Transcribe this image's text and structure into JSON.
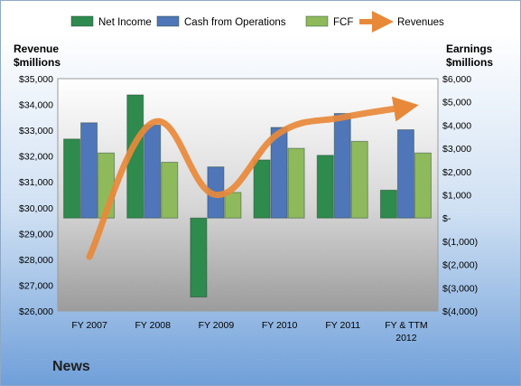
{
  "footer": {
    "title": "News"
  },
  "chart_data": {
    "type": "bar",
    "left_axis": {
      "title_line1": "Revenue",
      "title_line2": "$millions",
      "range": [
        26000,
        35000
      ],
      "ticks": [
        "$26,000",
        "$27,000",
        "$28,000",
        "$29,000",
        "$30,000",
        "$31,000",
        "$32,000",
        "$33,000",
        "$34,000",
        "$35,000"
      ]
    },
    "right_axis": {
      "title_line1": "Earnings",
      "title_line2": "$millions",
      "range": [
        -4000,
        6000
      ],
      "ticks": [
        "$(4,000)",
        "$(3,000)",
        "$(2,000)",
        "$(1,000)",
        "$-",
        "$1,000",
        "$2,000",
        "$3,000",
        "$4,000",
        "$5,000",
        "$6,000"
      ]
    },
    "categories": [
      "FY 2007",
      "FY 2008",
      "FY 2009",
      "FY 2010",
      "FY 2011",
      "FY & TTM 2012"
    ],
    "series": [
      {
        "name": "Net Income",
        "axis": "right",
        "type": "bar",
        "color": "#2f8a4e",
        "values": [
          3400,
          5300,
          -3400,
          2500,
          2700,
          1200
        ]
      },
      {
        "name": "Cash from Operations",
        "axis": "right",
        "type": "bar",
        "color": "#4f76b8",
        "values": [
          4100,
          4000,
          2200,
          3900,
          4500,
          3800
        ]
      },
      {
        "name": "FCF",
        "axis": "right",
        "type": "bar",
        "color": "#8fba5c",
        "values": [
          2800,
          2400,
          1100,
          3000,
          3300,
          2800
        ]
      },
      {
        "name": "Revenues",
        "axis": "left",
        "type": "line",
        "color": "#e8893a",
        "values": [
          28100,
          33300,
          30500,
          32900,
          33500,
          33900
        ]
      }
    ],
    "legend_position": "top",
    "grid": false
  }
}
